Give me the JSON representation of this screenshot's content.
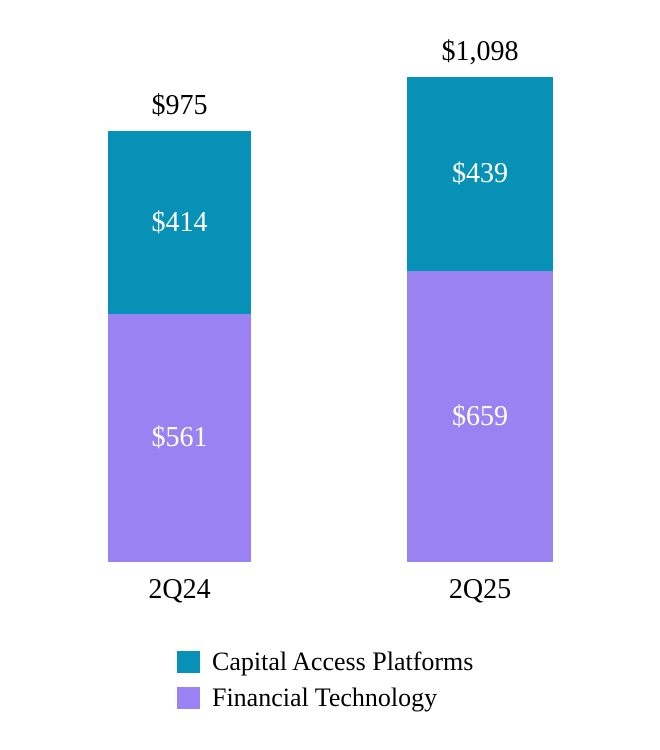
{
  "chart_data": {
    "type": "bar",
    "stacked": true,
    "orientation": "vertical",
    "categories": [
      "2Q24",
      "2Q25"
    ],
    "series": [
      {
        "name": "Capital Access Platforms",
        "color": "#0791b6",
        "values": [
          414,
          439
        ],
        "labels": [
          "$414",
          "$439"
        ]
      },
      {
        "name": "Financial Technology",
        "color": "#9a82f2",
        "values": [
          561,
          659
        ],
        "labels": [
          "$561",
          "$659"
        ]
      }
    ],
    "totals": [
      975,
      1098
    ],
    "total_labels": [
      "$975",
      "$1,098"
    ],
    "title": "",
    "xlabel": "",
    "ylabel": "",
    "axes_hidden": true,
    "grid": false,
    "legend_position": "bottom",
    "value_label_color": "#ffffff",
    "total_label_color": "#000000"
  }
}
